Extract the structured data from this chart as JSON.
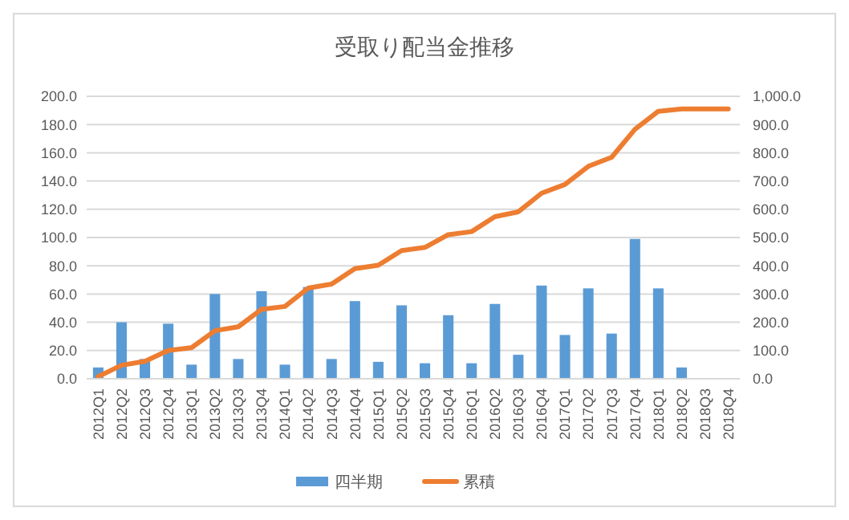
{
  "chart_data": {
    "type": "bar",
    "title": "受取り配当金推移",
    "categories": [
      "2012Q1",
      "2012Q2",
      "2012Q3",
      "2012Q4",
      "2013Q1",
      "2013Q2",
      "2013Q3",
      "2013Q4",
      "2014Q1",
      "2014Q2",
      "2014Q3",
      "2014Q4",
      "2015Q1",
      "2015Q2",
      "2015Q3",
      "2015Q4",
      "2016Q1",
      "2016Q2",
      "2016Q3",
      "2016Q4",
      "2017Q1",
      "2017Q2",
      "2017Q3",
      "2017Q4",
      "2018Q1",
      "2018Q2",
      "2018Q3",
      "2018Q4"
    ],
    "series": [
      {
        "name": "四半期",
        "color": "#5b9bd5",
        "values": [
          8,
          40,
          14,
          39,
          10,
          60,
          14,
          62,
          10,
          65,
          14,
          55,
          12,
          52,
          11,
          45,
          11,
          53,
          17,
          66,
          31,
          64,
          32,
          99,
          64,
          8,
          null,
          null
        ]
      },
      {
        "name": "累積",
        "type": "line",
        "axis": "y2",
        "color": "#ed7d31",
        "values": [
          8,
          48,
          62,
          100,
          110,
          170,
          184,
          246,
          256,
          321,
          335,
          390,
          402,
          454,
          465,
          510,
          521,
          574,
          591,
          657,
          688,
          752,
          784,
          883,
          947,
          955,
          955,
          955
        ]
      }
    ],
    "ylim": [
      0,
      200
    ],
    "yticks": [
      {
        "value": 0,
        "label": "0.0"
      },
      {
        "value": 20,
        "label": "20.0"
      },
      {
        "value": 40,
        "label": "40.0"
      },
      {
        "value": 60,
        "label": "60.0"
      },
      {
        "value": 80,
        "label": "80.0"
      },
      {
        "value": 100,
        "label": "100.0"
      },
      {
        "value": 120,
        "label": "120.0"
      },
      {
        "value": 140,
        "label": "140.0"
      },
      {
        "value": 160,
        "label": "160.0"
      },
      {
        "value": 180,
        "label": "180.0"
      },
      {
        "value": 200,
        "label": "200.0"
      }
    ],
    "y2lim": [
      0,
      1000
    ],
    "y2ticks": [
      {
        "value": 0,
        "label": "0.0"
      },
      {
        "value": 100,
        "label": "100.0"
      },
      {
        "value": 200,
        "label": "200.0"
      },
      {
        "value": 300,
        "label": "300.0"
      },
      {
        "value": 400,
        "label": "400.0"
      },
      {
        "value": 500,
        "label": "500.0"
      },
      {
        "value": 600,
        "label": "600.0"
      },
      {
        "value": 700,
        "label": "700.0"
      },
      {
        "value": 800,
        "label": "800.0"
      },
      {
        "value": 900,
        "label": "900.0"
      },
      {
        "value": 1000,
        "label": "1,000.0"
      }
    ],
    "grid": "y",
    "legend": "bottom"
  }
}
